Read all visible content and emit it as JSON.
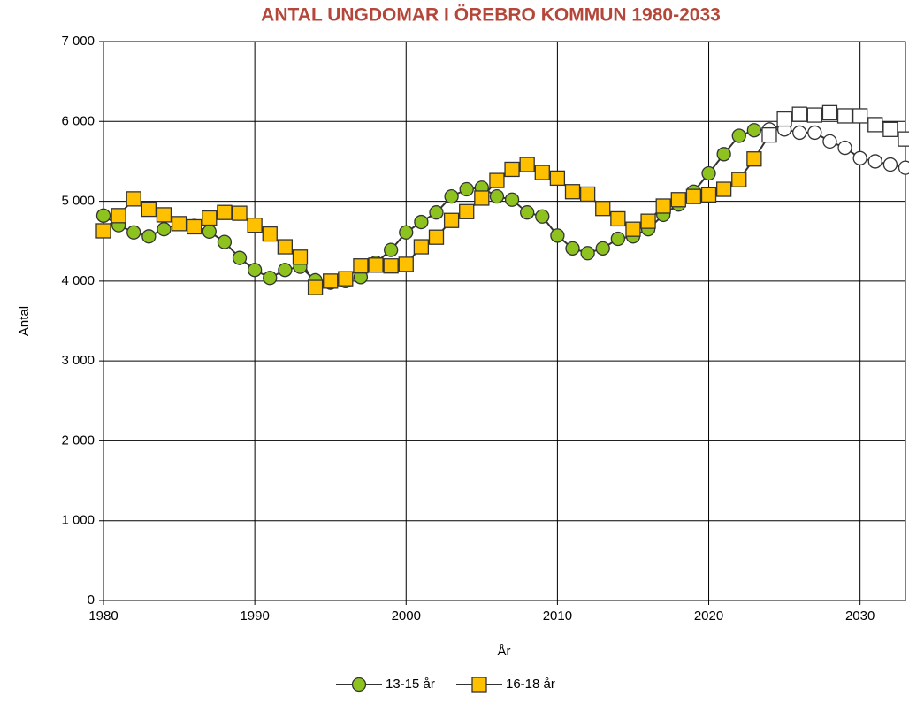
{
  "chart_data": {
    "type": "line",
    "title": "ANTAL UNGDOMAR I ÖREBRO KOMMUN 1980-2033",
    "title_color": "#b5473a",
    "xlabel": "År",
    "ylabel": "Antal",
    "x": [
      1980,
      1981,
      1982,
      1983,
      1984,
      1985,
      1986,
      1987,
      1988,
      1989,
      1990,
      1991,
      1992,
      1993,
      1994,
      1995,
      1996,
      1997,
      1998,
      1999,
      2000,
      2001,
      2002,
      2003,
      2004,
      2005,
      2006,
      2007,
      2008,
      2009,
      2010,
      2011,
      2012,
      2013,
      2014,
      2015,
      2016,
      2017,
      2018,
      2019,
      2020,
      2021,
      2022,
      2023,
      2024,
      2025,
      2026,
      2027,
      2028,
      2029,
      2030,
      2031,
      2032,
      2033
    ],
    "series": [
      {
        "name": "13-15 år",
        "marker": "circle",
        "color": "#8dc21f",
        "values": [
          4820,
          4700,
          4610,
          4560,
          4650,
          4720,
          4690,
          4620,
          4490,
          4290,
          4140,
          4040,
          4140,
          4180,
          4010,
          3980,
          4000,
          4050,
          4230,
          4390,
          4610,
          4740,
          4860,
          5060,
          5150,
          5170,
          5060,
          5020,
          4860,
          4810,
          4570,
          4410,
          4350,
          4410,
          4530,
          4560,
          4650,
          4830,
          4960,
          5120,
          5350,
          5590,
          5820,
          5890,
          5900,
          5900,
          5860,
          5860,
          5750,
          5670,
          5540,
          5500,
          5460,
          5420
        ]
      },
      {
        "name": "16-18 år",
        "marker": "square",
        "color": "#ffc000",
        "values": [
          4630,
          4820,
          5030,
          4900,
          4830,
          4720,
          4680,
          4790,
          4860,
          4850,
          4700,
          4590,
          4430,
          4300,
          3920,
          4000,
          4030,
          4190,
          4200,
          4190,
          4210,
          4430,
          4550,
          4760,
          4870,
          5040,
          5260,
          5400,
          5460,
          5360,
          5290,
          5120,
          5090,
          4910,
          4780,
          4650,
          4750,
          4940,
          5020,
          5060,
          5080,
          5150,
          5270,
          5530,
          5830,
          6030,
          6090,
          6080,
          6110,
          6070,
          6070,
          5960,
          5900,
          5780
        ]
      }
    ],
    "forecast_from": 2024,
    "forecast_fill": "#ffffff",
    "line_color": "#333333",
    "xlim": [
      1980,
      2033
    ],
    "xticks": [
      1980,
      1990,
      2000,
      2010,
      2020,
      2030
    ],
    "ylim": [
      0,
      7000
    ],
    "yticks": [
      0,
      {
        "value": 1000,
        "label": "1 000"
      },
      {
        "value": 2000,
        "label": "2 000"
      },
      {
        "value": 3000,
        "label": "3 000"
      },
      {
        "value": 4000,
        "label": "4 000"
      },
      {
        "value": 5000,
        "label": "5 000"
      },
      {
        "value": 6000,
        "label": "6 000"
      },
      {
        "value": 7000,
        "label": "7 000"
      }
    ],
    "grid": true,
    "legend": "bottom"
  }
}
